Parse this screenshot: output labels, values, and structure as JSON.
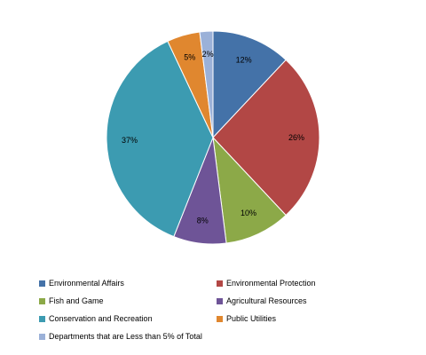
{
  "chart_data": {
    "type": "pie",
    "slices": [
      {
        "name": "Environmental Affairs",
        "value": 12,
        "label": "12%",
        "color": "#4472A8"
      },
      {
        "name": "Environmental Protection",
        "value": 26,
        "label": "26%",
        "color": "#B24745"
      },
      {
        "name": "Fish and Game",
        "value": 10,
        "label": "10%",
        "color": "#8CA948"
      },
      {
        "name": "Agricultural Resources",
        "value": 8,
        "label": "8%",
        "color": "#6E5497"
      },
      {
        "name": "Conservation and Recreation",
        "value": 37,
        "label": "37%",
        "color": "#3C9BB1"
      },
      {
        "name": "Public Utilities",
        "value": 5,
        "label": "5%",
        "color": "#E0872F"
      },
      {
        "name": "Departments that are Less than 5% of Total",
        "value": 2,
        "label": "2%",
        "color": "#9BB1D8"
      }
    ],
    "legend_placement": "bottom"
  }
}
